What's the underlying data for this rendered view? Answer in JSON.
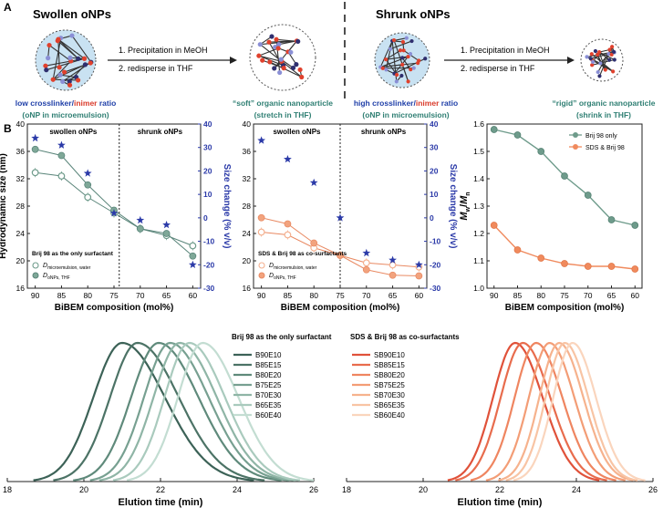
{
  "panels": {
    "A": "A",
    "B": "B"
  },
  "schematic": {
    "swollen": {
      "title": "Swollen oNPs",
      "step1": "1. Precipitation in MeOH",
      "step2": "2. redisperse in THF",
      "left_l1_a": "low ",
      "left_l1_b": "crosslinker",
      "left_l1_c": "/",
      "left_l1_d": "inimer",
      "left_l1_e": " ratio",
      "left_l2": "(oNP in microemulsion)",
      "right_l1_a": "“soft”",
      "right_l1_b": " organic nanoparticle",
      "right_l2": "(stretch in THF)"
    },
    "shrunk": {
      "title": "Shrunk oNPs",
      "step1": "1. Precipitation in MeOH",
      "step2": "2. redisperse in THF",
      "left_l1_a": "high ",
      "left_l1_b": "crosslinker",
      "left_l1_c": "/",
      "left_l1_d": "inimer",
      "left_l1_e": " ratio",
      "left_l2": "(oNP in microemulsion)",
      "right_l1_a": "“rigid”",
      "right_l1_b": " organic nanoparticle",
      "right_l2": "(shrink in THF)"
    }
  },
  "colors": {
    "blue": "#1f3fa8",
    "red": "#d93a2a",
    "teal": "#2f7f73",
    "dark_teal": "#3f7a6e",
    "brij": "#6e9b8b",
    "sds": "#f08a5d",
    "star": "#2b3aa8"
  },
  "chart_data": [
    {
      "type": "scatter",
      "id": "size-brij",
      "xlabel": "BiBEM composition (mol%)",
      "ylabel": "Hydrodynamic size (nm)",
      "y2label": "Size change (% v/v)",
      "x": [
        90,
        85,
        80,
        75,
        70,
        65,
        60
      ],
      "xlim": [
        91.5,
        58.5
      ],
      "ylim": [
        16,
        40
      ],
      "y2lim": [
        -30,
        40
      ],
      "yticks": [
        16,
        20,
        24,
        28,
        32,
        36,
        40
      ],
      "y2ticks": [
        -30,
        -20,
        -10,
        0,
        10,
        20,
        30,
        40
      ],
      "xticks": [
        90,
        85,
        80,
        75,
        70,
        65,
        60
      ],
      "region_left": "swollen oNPs",
      "region_right": "shrunk oNPs",
      "divider_x": 74,
      "legend_title": "Brij 98 as the only surfactant",
      "series": [
        {
          "name": "D_microemulsion, water",
          "legend_main": "D",
          "legend_sub": "microemulsion, water",
          "values": [
            32.9,
            32.4,
            29.3,
            27.0,
            24.7,
            23.7,
            22.2
          ]
        },
        {
          "name": "D_oNPs, THF",
          "legend_main": "D",
          "legend_sub": "oNPs, THF",
          "values": [
            36.3,
            35.4,
            31.1,
            27.4,
            24.7,
            24.0,
            20.7
          ]
        },
        {
          "name": "size change",
          "values": [
            34,
            31,
            19,
            2,
            -1,
            -3,
            -20
          ]
        }
      ]
    },
    {
      "type": "scatter",
      "id": "size-sds",
      "xlabel": "BiBEM composition (mol%)",
      "ylabel": "",
      "y2label": "Size change (% v/v)",
      "x": [
        90,
        85,
        80,
        75,
        70,
        65,
        60
      ],
      "xlim": [
        91.5,
        58.5
      ],
      "ylim": [
        16,
        40
      ],
      "y2lim": [
        -30,
        40
      ],
      "yticks": [
        16,
        20,
        24,
        28,
        32,
        36,
        40
      ],
      "y2ticks": [
        -30,
        -20,
        -10,
        0,
        10,
        20,
        30,
        40
      ],
      "xticks": [
        90,
        85,
        80,
        75,
        70,
        65,
        60
      ],
      "region_left": "swollen oNPs",
      "region_right": "shrunk oNPs",
      "divider_x": 75,
      "legend_title": "SDS & Brij 98 as co-surfactants",
      "series": [
        {
          "name": "D_microemulsion, water",
          "legend_main": "D",
          "legend_sub": "microemulsion, water",
          "values": [
            24.2,
            23.8,
            21.9,
            20.8,
            19.7,
            19.4,
            19.1
          ]
        },
        {
          "name": "D_oNPs, THF",
          "legend_main": "D",
          "legend_sub": "oNPs, THF",
          "values": [
            26.3,
            25.4,
            22.6,
            20.8,
            18.7,
            17.9,
            17.8
          ]
        },
        {
          "name": "size change",
          "values": [
            33,
            25,
            15,
            0,
            -15,
            -18,
            -20
          ]
        }
      ]
    },
    {
      "type": "line",
      "id": "dispersity",
      "xlabel": "BiBEM composition (mol%)",
      "ylabel_main": "M",
      "ylabel_sub1": "w",
      "ylabel_mid": "/",
      "ylabel_main2": "M",
      "ylabel_sub2": "n",
      "x": [
        90,
        85,
        80,
        75,
        70,
        65,
        60
      ],
      "xlim": [
        91.5,
        58.5
      ],
      "ylim": [
        1.0,
        1.6
      ],
      "yticks": [
        "1.0",
        "1.1",
        "1.2",
        "1.3",
        "1.4",
        "1.5",
        "1.6"
      ],
      "xticks": [
        90,
        85,
        80,
        75,
        70,
        65,
        60
      ],
      "series": [
        {
          "name": "Brij 98 only",
          "values": [
            1.58,
            1.56,
            1.5,
            1.41,
            1.34,
            1.25,
            1.23
          ]
        },
        {
          "name": "SDS & Brij 98",
          "values": [
            1.23,
            1.14,
            1.11,
            1.09,
            1.08,
            1.08,
            1.07
          ]
        }
      ]
    },
    {
      "type": "line",
      "id": "gpc-brij",
      "title": "Brij 98 as the only surfactant",
      "xlabel": "Elution time (min)",
      "xlim": [
        18,
        26
      ],
      "xticks": [
        18,
        20,
        22,
        24,
        26
      ],
      "series": [
        {
          "name": "B90E10",
          "peak": 21.0,
          "sl": 1.05,
          "sr": 1.55,
          "color": "#3c6257"
        },
        {
          "name": "B85E15",
          "peak": 21.4,
          "sl": 1.0,
          "sr": 1.5,
          "color": "#4c7366"
        },
        {
          "name": "B80E20",
          "peak": 21.95,
          "sl": 1.0,
          "sr": 1.45,
          "color": "#5f8a7b"
        },
        {
          "name": "B75E25",
          "peak": 22.25,
          "sl": 0.95,
          "sr": 1.4,
          "color": "#77a091"
        },
        {
          "name": "B70E30",
          "peak": 22.5,
          "sl": 0.95,
          "sr": 1.35,
          "color": "#8fb5a6"
        },
        {
          "name": "B65E35",
          "peak": 22.75,
          "sl": 0.9,
          "sr": 1.3,
          "color": "#a9cabd"
        },
        {
          "name": "B60E40",
          "peak": 23.1,
          "sl": 0.9,
          "sr": 1.3,
          "color": "#c3ddd2"
        }
      ]
    },
    {
      "type": "line",
      "id": "gpc-sds",
      "title": "SDS & Brij 98 as co-surfactants",
      "xlabel": "Elution time (min)",
      "xlim": [
        18,
        26
      ],
      "xticks": [
        18,
        20,
        22,
        24,
        26
      ],
      "series": [
        {
          "name": "SB90E10",
          "peak": 22.4,
          "sl": 0.8,
          "sr": 1.0,
          "color": "#e0523a"
        },
        {
          "name": "SB85E15",
          "peak": 22.6,
          "sl": 0.8,
          "sr": 1.0,
          "color": "#e86c4d"
        },
        {
          "name": "SB80E20",
          "peak": 22.95,
          "sl": 0.78,
          "sr": 0.95,
          "color": "#ef8560"
        },
        {
          "name": "SB75E25",
          "peak": 23.3,
          "sl": 0.75,
          "sr": 0.9,
          "color": "#f39d76"
        },
        {
          "name": "SB70E30",
          "peak": 23.55,
          "sl": 0.72,
          "sr": 0.88,
          "color": "#f6b28d"
        },
        {
          "name": "SB65E35",
          "peak": 23.7,
          "sl": 0.7,
          "sr": 0.85,
          "color": "#f8c4a4"
        },
        {
          "name": "SB60E40",
          "peak": 23.9,
          "sl": 0.7,
          "sr": 0.85,
          "color": "#fad5bd"
        }
      ]
    }
  ]
}
